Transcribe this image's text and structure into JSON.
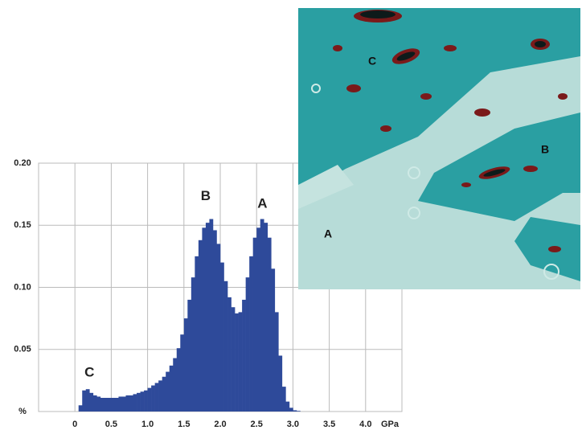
{
  "chart_data": {
    "type": "histogram",
    "xlabel": "GPa",
    "color": "#2e4a9a",
    "bins": [
      0.05,
      0.1,
      0.15,
      0.2,
      0.25,
      0.3,
      0.35,
      0.4,
      0.45,
      0.5,
      0.55,
      0.6,
      0.65,
      0.7,
      0.75,
      0.8,
      0.85,
      0.9,
      0.95,
      1.0,
      1.05,
      1.1,
      1.15,
      1.2,
      1.25,
      1.3,
      1.35,
      1.4,
      1.45,
      1.5,
      1.55,
      1.6,
      1.65,
      1.7,
      1.75,
      1.8,
      1.85,
      1.9,
      1.95,
      2.0,
      2.05,
      2.1,
      2.15,
      2.2,
      2.25,
      2.3,
      2.35,
      2.4,
      2.45,
      2.5,
      2.55,
      2.6,
      2.65,
      2.7,
      2.75,
      2.8,
      2.85,
      2.9,
      2.95,
      3.0,
      3.05,
      3.1
    ],
    "values": [
      0.005,
      0.017,
      0.018,
      0.015,
      0.013,
      0.012,
      0.011,
      0.011,
      0.011,
      0.011,
      0.011,
      0.012,
      0.012,
      0.013,
      0.013,
      0.014,
      0.015,
      0.016,
      0.017,
      0.019,
      0.021,
      0.023,
      0.025,
      0.028,
      0.032,
      0.037,
      0.043,
      0.051,
      0.062,
      0.075,
      0.09,
      0.108,
      0.125,
      0.138,
      0.148,
      0.152,
      0.155,
      0.146,
      0.135,
      0.12,
      0.105,
      0.092,
      0.084,
      0.079,
      0.08,
      0.09,
      0.108,
      0.125,
      0.14,
      0.148,
      0.155,
      0.152,
      0.14,
      0.115,
      0.08,
      0.045,
      0.02,
      0.008,
      0.003,
      0.001,
      0.0005
    ],
    "xlim": [
      -0.5,
      4.5
    ],
    "xticks": [
      0,
      0.5,
      {
        "value": 1,
        "label": "1.0"
      },
      1.5,
      {
        "value": 2,
        "label": "2.0"
      },
      2.5,
      {
        "value": 3,
        "label": "3.0"
      },
      3.5,
      {
        "value": 4,
        "label": "4.0"
      }
    ],
    "ylim": [
      0,
      0.2
    ],
    "yticks": [
      {
        "value": 0,
        "label": "%"
      },
      0.05,
      {
        "value": 0.1,
        "label": "0.10"
      },
      0.15,
      {
        "value": 0.2,
        "label": "0.20"
      }
    ],
    "grid": true,
    "annotations": [
      {
        "text": "C",
        "x": 0.2,
        "y": 0.031
      },
      {
        "text": "B",
        "x": 1.8,
        "y": 0.173
      },
      {
        "text": "A",
        "x": 2.58,
        "y": 0.167
      }
    ]
  },
  "image": {
    "labels": [
      "C",
      "B",
      "A"
    ]
  }
}
